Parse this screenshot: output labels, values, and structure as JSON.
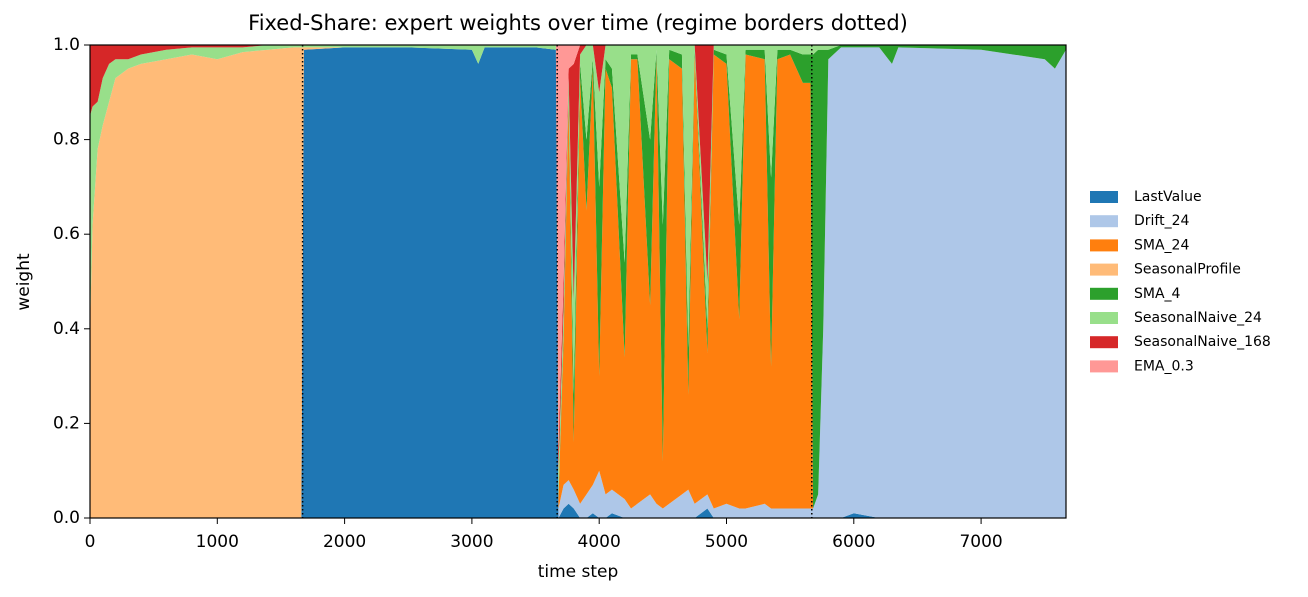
{
  "chart_data": {
    "type": "stackplot",
    "title": "Fixed-Share: expert weights over time (regime borders dotted)",
    "x_label": "time step",
    "y_label": "weight",
    "xlim": [
      0,
      7667
    ],
    "ylim": [
      0,
      1
    ],
    "xticks": [
      0,
      1000,
      2000,
      3000,
      4000,
      5000,
      6000,
      7000
    ],
    "yticks": [
      {
        "value": 0,
        "label": "0.0"
      },
      {
        "value": 0.2,
        "label": "0.2"
      },
      {
        "value": 0.4,
        "label": "0.4"
      },
      {
        "value": 0.6,
        "label": "0.6"
      },
      {
        "value": 0.8,
        "label": "0.8"
      },
      {
        "value": 1,
        "label": "1.0"
      }
    ],
    "regime_borders": [
      1670,
      3670,
      5670
    ],
    "x": [
      0,
      20,
      60,
      100,
      150,
      200,
      300,
      400,
      600,
      800,
      1000,
      1200,
      1400,
      1600,
      1660,
      1680,
      2000,
      2500,
      3000,
      3050,
      3100,
      3500,
      3660,
      3680,
      3720,
      3760,
      3800,
      3850,
      3900,
      3950,
      4000,
      4050,
      4100,
      4200,
      4250,
      4300,
      4400,
      4450,
      4500,
      4550,
      4650,
      4700,
      4750,
      4850,
      4900,
      5000,
      5100,
      5150,
      5300,
      5350,
      5400,
      5500,
      5600,
      5660,
      5680,
      5720,
      5760,
      5800,
      5900,
      6000,
      6200,
      6300,
      6350,
      7000,
      7500,
      7580,
      7667
    ],
    "series": [
      {
        "name": "LastValue",
        "color": "#1f77b4",
        "values": [
          0,
          0,
          0,
          0,
          0,
          0,
          0,
          0,
          0,
          0,
          0,
          0,
          0,
          0,
          0,
          0.99,
          0.995,
          0.995,
          0.99,
          0.96,
          0.995,
          0.995,
          0.99,
          0,
          0.02,
          0.03,
          0.02,
          0,
          0,
          0.01,
          0,
          0,
          0.01,
          0,
          0,
          0,
          0,
          0,
          0,
          0,
          0,
          0,
          0,
          0.02,
          0,
          0,
          0,
          0,
          0,
          0,
          0,
          0,
          0,
          0,
          0,
          0,
          0,
          0,
          0,
          0.01,
          0,
          0,
          0,
          0,
          0,
          0,
          0
        ]
      },
      {
        "name": "Drift_24",
        "color": "#aec7e8",
        "values": [
          0,
          0,
          0,
          0,
          0,
          0,
          0,
          0,
          0,
          0,
          0,
          0,
          0,
          0,
          0,
          0,
          0,
          0,
          0,
          0,
          0,
          0,
          0,
          0.02,
          0.05,
          0.05,
          0.04,
          0.03,
          0.05,
          0.06,
          0.1,
          0.05,
          0.05,
          0.04,
          0.02,
          0.03,
          0.05,
          0.03,
          0.02,
          0.03,
          0.05,
          0.06,
          0.03,
          0.03,
          0.02,
          0.03,
          0.02,
          0.02,
          0.03,
          0.02,
          0.02,
          0.02,
          0.02,
          0.02,
          0.02,
          0.05,
          0.4,
          0.97,
          0.995,
          0.985,
          0.995,
          0.96,
          0.995,
          0.99,
          0.97,
          0.95,
          0.99
        ]
      },
      {
        "name": "SMA_24",
        "color": "#ff7f0e",
        "values": [
          0,
          0,
          0,
          0,
          0,
          0,
          0,
          0,
          0,
          0,
          0,
          0,
          0,
          0,
          0,
          0,
          0,
          0,
          0,
          0,
          0,
          0,
          0,
          0.02,
          0.3,
          0.8,
          0.1,
          0.9,
          0.6,
          0.88,
          0.2,
          0.9,
          0.85,
          0.3,
          0.95,
          0.94,
          0.4,
          0.95,
          0.1,
          0.94,
          0.9,
          0.2,
          0.95,
          0.3,
          0.96,
          0.93,
          0.4,
          0.96,
          0.94,
          0.3,
          0.95,
          0.96,
          0.9,
          0.9,
          0,
          0,
          0,
          0,
          0,
          0,
          0,
          0,
          0,
          0,
          0,
          0,
          0
        ]
      },
      {
        "name": "SeasonalProfile",
        "color": "#ffbb78",
        "values": [
          0.4,
          0.62,
          0.78,
          0.83,
          0.88,
          0.93,
          0.95,
          0.96,
          0.97,
          0.98,
          0.97,
          0.985,
          0.99,
          0.995,
          0.995,
          0.005,
          0,
          0,
          0,
          0,
          0,
          0,
          0,
          0,
          0,
          0,
          0,
          0,
          0,
          0,
          0,
          0,
          0,
          0,
          0,
          0,
          0,
          0,
          0,
          0,
          0,
          0,
          0,
          0,
          0,
          0,
          0,
          0,
          0,
          0,
          0,
          0,
          0,
          0,
          0,
          0,
          0,
          0,
          0,
          0,
          0,
          0,
          0,
          0,
          0,
          0,
          0
        ]
      },
      {
        "name": "SMA_4",
        "color": "#2ca02c",
        "values": [
          0,
          0,
          0,
          0,
          0,
          0,
          0,
          0,
          0,
          0,
          0,
          0,
          0,
          0,
          0,
          0,
          0,
          0,
          0,
          0,
          0,
          0,
          0,
          0.01,
          0.02,
          0.02,
          0.1,
          0.03,
          0.15,
          0.02,
          0.4,
          0.02,
          0.04,
          0.2,
          0.01,
          0.01,
          0.35,
          0.01,
          0.5,
          0.02,
          0.03,
          0.1,
          0.01,
          0.05,
          0.01,
          0.02,
          0.2,
          0.01,
          0.02,
          0.4,
          0.02,
          0.01,
          0.06,
          0.06,
          0.96,
          0.94,
          0.59,
          0.02,
          0.005,
          0.005,
          0.005,
          0.04,
          0.005,
          0.01,
          0.03,
          0.05,
          0.01
        ]
      },
      {
        "name": "SeasonalNaive_24",
        "color": "#98df8a",
        "values": [
          0.45,
          0.25,
          0.1,
          0.1,
          0.08,
          0.04,
          0.02,
          0.02,
          0.02,
          0.015,
          0.025,
          0.01,
          0.01,
          0.005,
          0.005,
          0.005,
          0.005,
          0.005,
          0.01,
          0.04,
          0.005,
          0.005,
          0.01,
          0.05,
          0.05,
          0.03,
          0.2,
          0.02,
          0.2,
          0.03,
          0.2,
          0.03,
          0.05,
          0.46,
          0.02,
          0.02,
          0.2,
          0.01,
          0.38,
          0.01,
          0.02,
          0.64,
          0.01,
          0.1,
          0.01,
          0.02,
          0.38,
          0.01,
          0.01,
          0.28,
          0.01,
          0.01,
          0.02,
          0.02,
          0.02,
          0.01,
          0.01,
          0.01,
          0,
          0,
          0,
          0,
          0,
          0,
          0,
          0,
          0
        ]
      },
      {
        "name": "SeasonalNaive_168",
        "color": "#d62728",
        "values": [
          0.15,
          0.13,
          0.12,
          0.07,
          0.04,
          0.03,
          0.03,
          0.02,
          0.01,
          0.005,
          0.005,
          0.005,
          0,
          0,
          0,
          0,
          0,
          0,
          0,
          0,
          0,
          0,
          0,
          0.05,
          0.06,
          0.02,
          0.5,
          0.02,
          0,
          0,
          0.1,
          0,
          0,
          0,
          0,
          0,
          0,
          0,
          0,
          0,
          0,
          0,
          0,
          0.5,
          0,
          0,
          0,
          0,
          0,
          0,
          0,
          0,
          0,
          0,
          0,
          0,
          0,
          0,
          0,
          0,
          0,
          0,
          0,
          0,
          0,
          0,
          0
        ]
      },
      {
        "name": "EMA_0.3",
        "color": "#ff9896",
        "values": [
          0,
          0,
          0,
          0,
          0,
          0,
          0,
          0,
          0,
          0,
          0,
          0,
          0,
          0,
          0,
          0,
          0,
          0,
          0,
          0,
          0,
          0,
          0,
          0.85,
          0.5,
          0.05,
          0.04,
          0,
          0,
          0,
          0,
          0,
          0,
          0,
          0,
          0,
          0,
          0,
          0,
          0,
          0,
          0,
          0,
          0,
          0,
          0,
          0,
          0,
          0,
          0,
          0,
          0,
          0,
          0,
          0,
          0,
          0,
          0,
          0,
          0,
          0,
          0,
          0,
          0,
          0,
          0,
          0
        ]
      }
    ]
  }
}
